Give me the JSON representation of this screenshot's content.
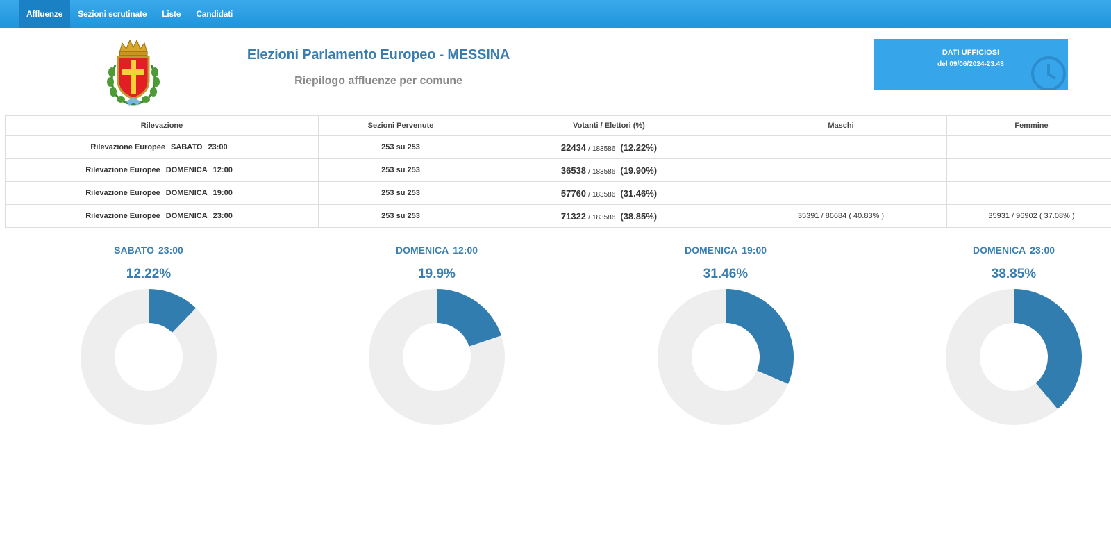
{
  "nav": {
    "items": [
      {
        "label": "Affluenze",
        "active": true
      },
      {
        "label": "Sezioni scrutinate",
        "active": false
      },
      {
        "label": "Liste",
        "active": false
      },
      {
        "label": "Candidati",
        "active": false
      }
    ]
  },
  "header": {
    "crest_icon": "messina-coat-of-arms-icon",
    "title": "Elezioni Parlamento Europeo - MESSINA",
    "subtitle": "Riepilogo affluenze per comune"
  },
  "official": {
    "line1": "DATI UFFICIOSI",
    "line2": "del 09/06/2024-23.43",
    "icon": "clock-icon"
  },
  "table": {
    "headers": [
      "Rilevazione",
      "Sezioni Pervenute",
      "Votanti / Elettori (%)",
      "Maschi",
      "Femmine"
    ],
    "rows": [
      {
        "rilevazione": [
          "Rilevazione Europee",
          "SABATO",
          "23:00"
        ],
        "sezioni": "253 su 253",
        "votanti": "22434",
        "sep": "/",
        "elettori": "183586",
        "perc": "(12.22%)",
        "maschi": "",
        "femmine": ""
      },
      {
        "rilevazione": [
          "Rilevazione Europee",
          "DOMENICA",
          "12:00"
        ],
        "sezioni": "253 su 253",
        "votanti": "36538",
        "sep": "/",
        "elettori": "183586",
        "perc": "(19.90%)",
        "maschi": "",
        "femmine": ""
      },
      {
        "rilevazione": [
          "Rilevazione Europee",
          "DOMENICA",
          "19:00"
        ],
        "sezioni": "253 su 253",
        "votanti": "57760",
        "sep": "/",
        "elettori": "183586",
        "perc": "(31.46%)",
        "maschi": "",
        "femmine": ""
      },
      {
        "rilevazione": [
          "Rilevazione Europee",
          "DOMENICA",
          "23:00"
        ],
        "sezioni": "253 su 253",
        "votanti": "71322",
        "sep": "/",
        "elettori": "183586",
        "perc": "(38.85%)",
        "maschi": "35391 / 86684 ( 40.83% )",
        "femmine": "35931 / 96902 ( 37.08% )"
      }
    ]
  },
  "chart_data": [
    {
      "type": "pie",
      "day": "SABATO",
      "time": "23:00",
      "label": "12.22%",
      "value": 12.22,
      "colors": {
        "filled": "#317daf",
        "empty": "#eeeeee"
      }
    },
    {
      "type": "pie",
      "day": "DOMENICA",
      "time": "12:00",
      "label": "19.9%",
      "value": 19.9,
      "colors": {
        "filled": "#317daf",
        "empty": "#eeeeee"
      }
    },
    {
      "type": "pie",
      "day": "DOMENICA",
      "time": "19:00",
      "label": "31.46%",
      "value": 31.46,
      "colors": {
        "filled": "#317daf",
        "empty": "#eeeeee"
      }
    },
    {
      "type": "pie",
      "day": "DOMENICA",
      "time": "23:00",
      "label": "38.85%",
      "value": 38.85,
      "colors": {
        "filled": "#317daf",
        "empty": "#eeeeee"
      }
    }
  ],
  "colors": {
    "nav": "#2aa0e6",
    "nav_active": "#1a82c4",
    "title": "#3a7eb0",
    "official_box": "#37a5ea",
    "link": "#2a8fd6"
  }
}
